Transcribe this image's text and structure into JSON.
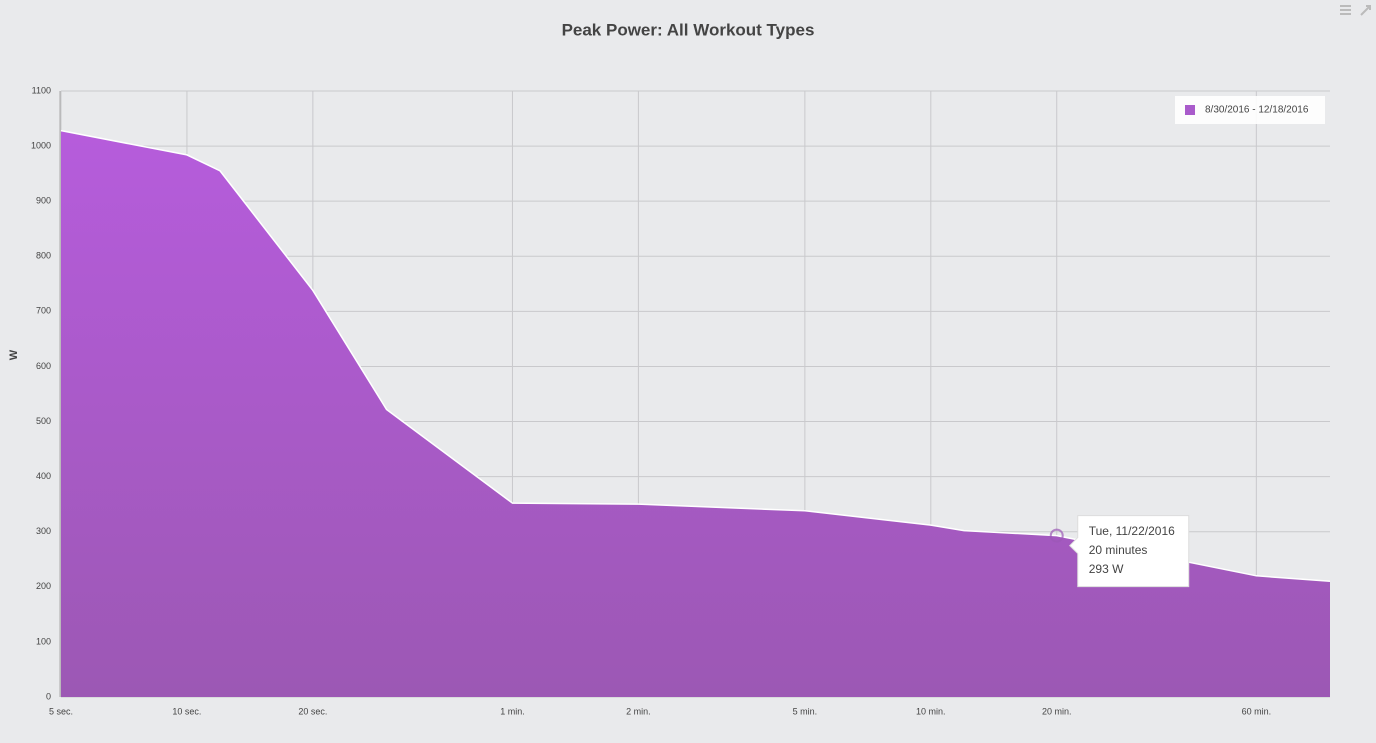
{
  "chart_data": {
    "type": "area",
    "title": "Peak Power: All Workout Types",
    "y_label": "W",
    "x": [
      5,
      10,
      12,
      20,
      30,
      60,
      120,
      300,
      600,
      720,
      1200,
      3600,
      5400
    ],
    "series": [
      {
        "name": "8/30/2016 - 12/18/2016",
        "color": "#a95bcb",
        "values": [
          1028,
          984,
          955,
          738,
          522,
          352,
          350,
          338,
          312,
          302,
          293,
          220,
          210
        ]
      }
    ],
    "xlim": [
      5,
      5400
    ],
    "xscale": "log",
    "xticks": [
      {
        "value": 5,
        "label": "5 sec."
      },
      {
        "value": 10,
        "label": "10 sec."
      },
      {
        "value": 20,
        "label": "20 sec."
      },
      {
        "value": 60,
        "label": "1 min."
      },
      {
        "value": 120,
        "label": "2 min."
      },
      {
        "value": 300,
        "label": "5 min."
      },
      {
        "value": 600,
        "label": "10 min."
      },
      {
        "value": 1200,
        "label": "20 min."
      },
      {
        "value": 3600,
        "label": "60 min."
      }
    ],
    "ylim": [
      0,
      1100
    ],
    "yticks": [
      0,
      100,
      200,
      300,
      400,
      500,
      600,
      700,
      800,
      900,
      1000,
      1100
    ],
    "grid": true,
    "legend": "top-right",
    "tooltip": {
      "point": 10,
      "lines": [
        "Tue, 11/22/2016",
        "20 minutes",
        "293 W"
      ]
    }
  }
}
